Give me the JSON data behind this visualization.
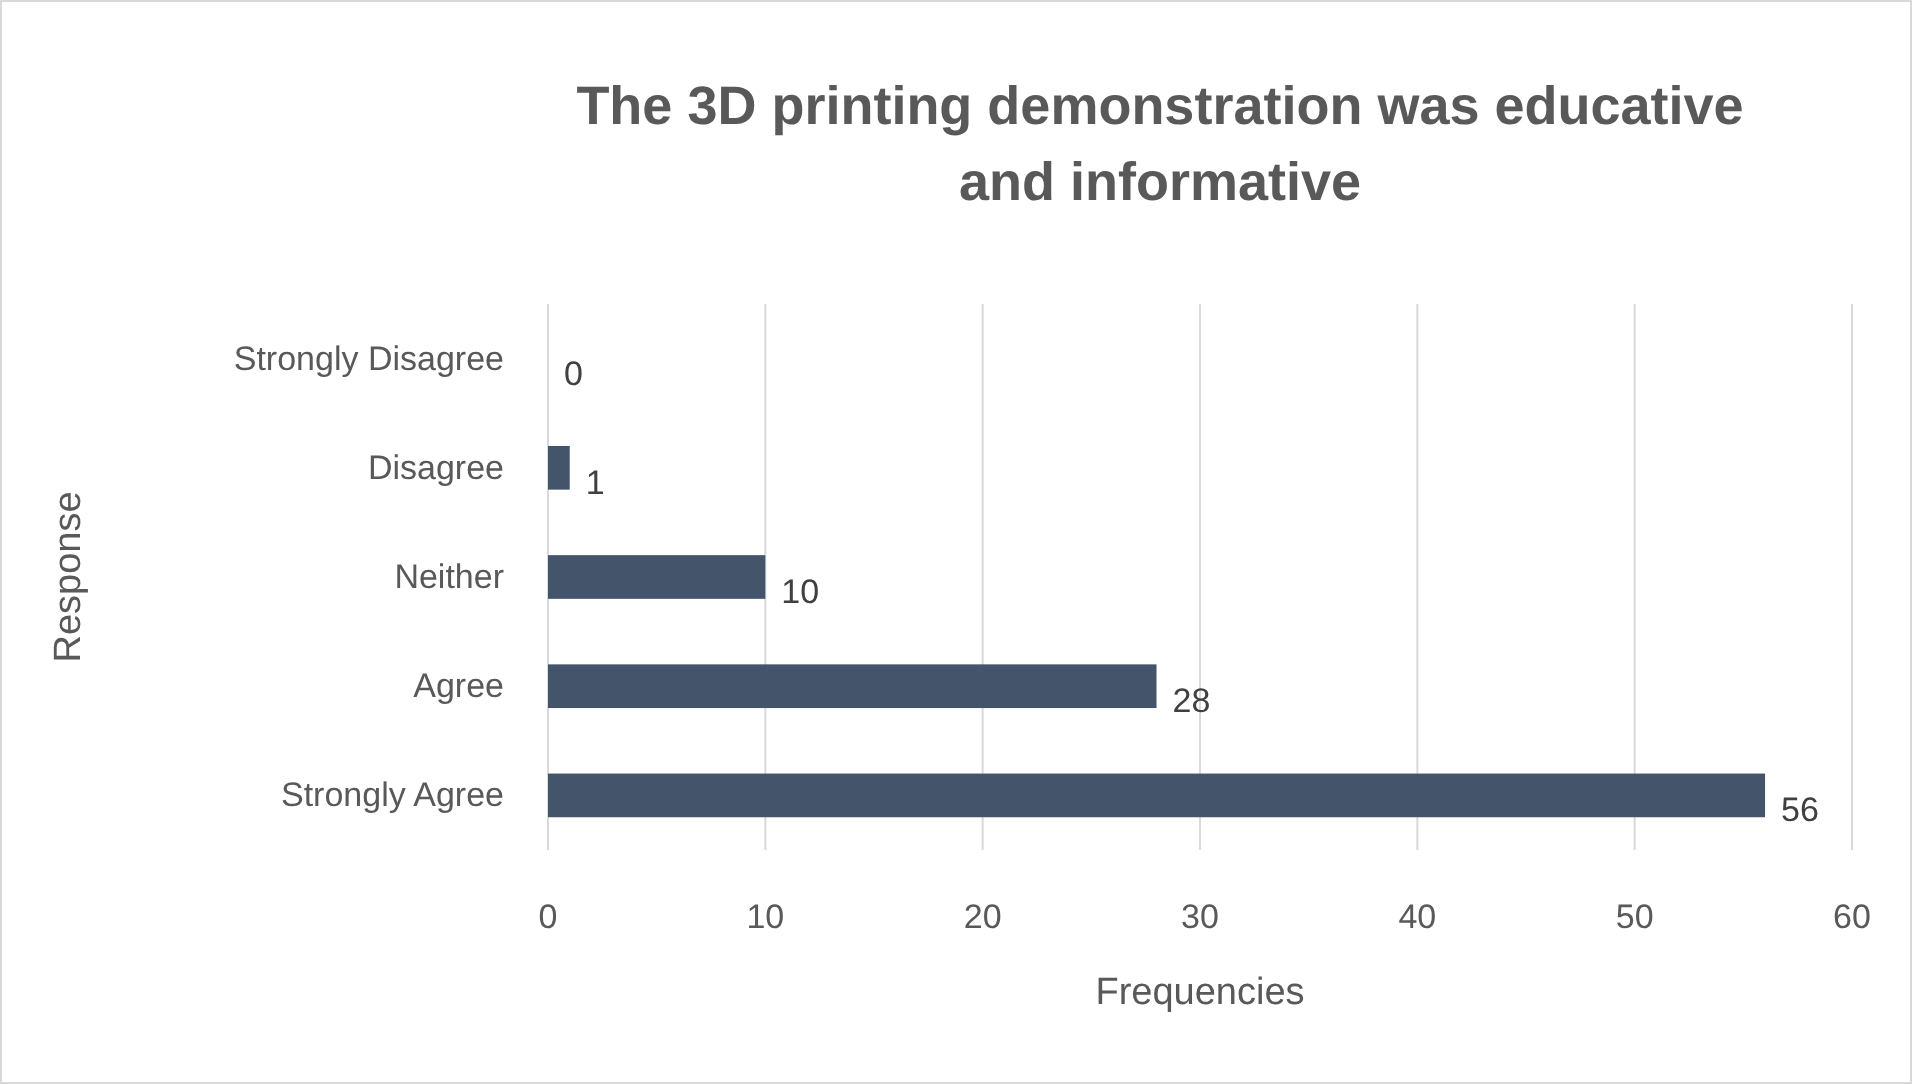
{
  "chart_data": {
    "type": "bar",
    "orientation": "horizontal",
    "title": "The 3D printing demonstration was educative and informative",
    "xlabel": "Frequencies",
    "ylabel": "Response",
    "categories": [
      "Strongly Disagree",
      "Disagree",
      "Neither",
      "Agree",
      "Strongly Agree"
    ],
    "values": [
      0,
      1,
      10,
      28,
      56
    ],
    "color": "#44546a",
    "data_labels": true,
    "xlim": [
      0,
      60
    ],
    "xticks": [
      0,
      10,
      20,
      30,
      40,
      50,
      60
    ],
    "grid": "x"
  }
}
